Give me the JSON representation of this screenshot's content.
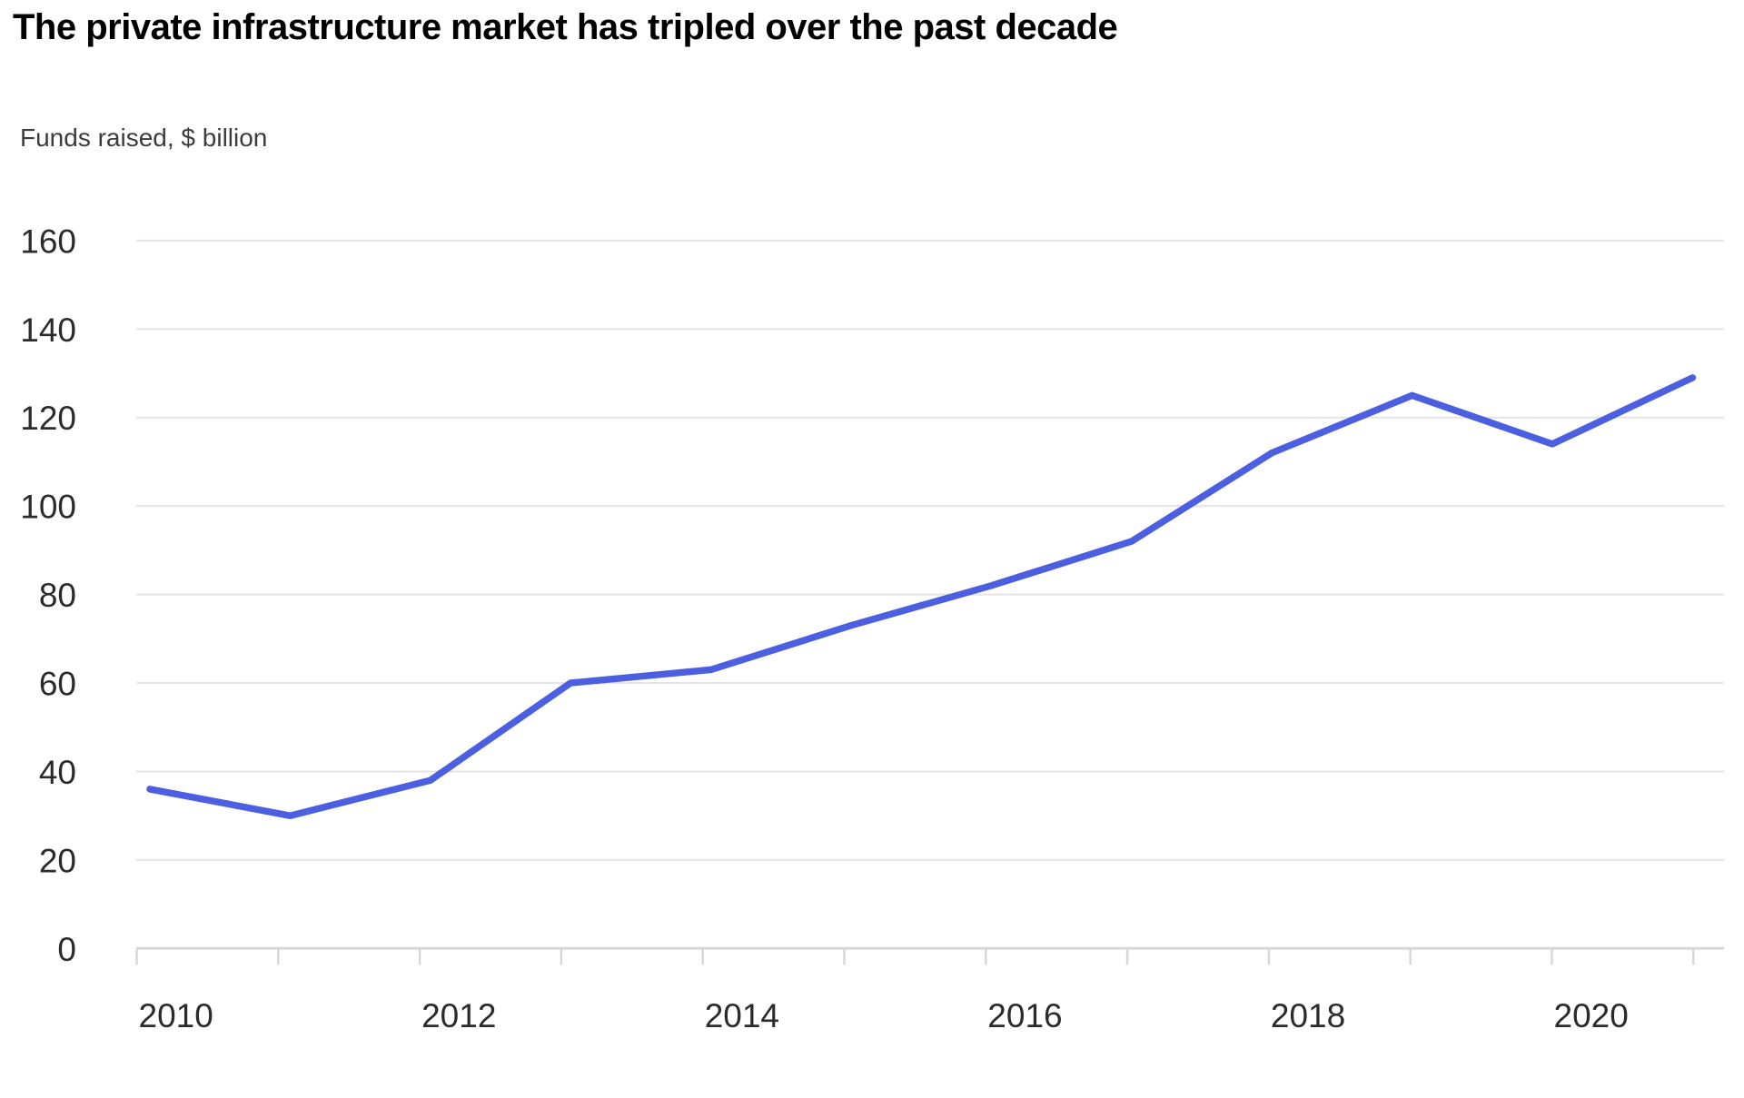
{
  "title": "The private infrastructure market has tripled over the past decade",
  "subtitle": "Funds raised, $ billion",
  "colors": {
    "background": "#ffffff",
    "title_text": "#000000",
    "subtitle_text": "#3c3c3c",
    "line": "#4c5fe0",
    "gridline": "#e4e4e4",
    "axis": "#d8d8d8",
    "axis_label_text": "#2b2b2b"
  },
  "chart_data": {
    "type": "line",
    "title": "The private infrastructure market has tripled over the past decade",
    "subtitle": "Funds raised, $ billion",
    "xlabel": "",
    "ylabel": "Funds raised, $ billion",
    "x": [
      2010,
      2011,
      2012,
      2013,
      2014,
      2015,
      2016,
      2017,
      2018,
      2019,
      2020,
      2021
    ],
    "values": [
      36,
      30,
      38,
      60,
      63,
      73,
      82,
      92,
      112,
      125,
      114,
      129
    ],
    "series_name": "Funds raised ($ billion)",
    "ylim": [
      0,
      160
    ],
    "yticks": [
      0,
      20,
      40,
      60,
      80,
      100,
      120,
      140,
      160
    ],
    "ytick_labels": [
      "0",
      "20",
      "40",
      "60",
      "80",
      "100",
      "120",
      "140",
      "160"
    ],
    "xtick_labels": [
      "2010",
      "2012",
      "2014",
      "2016",
      "2018",
      "2020"
    ],
    "grid": "horizontal",
    "legend": "none",
    "line_width": 7.5,
    "line_color": "#4c5fe0"
  }
}
